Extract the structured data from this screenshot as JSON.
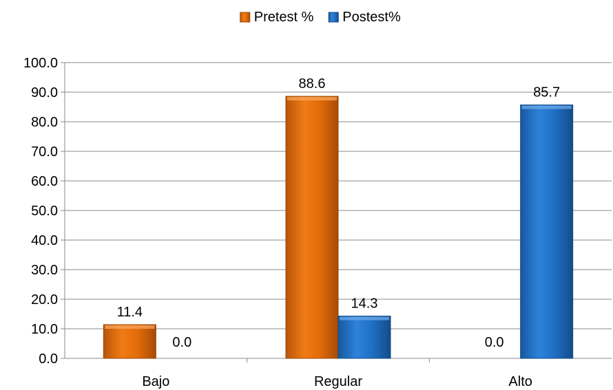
{
  "chart_data": {
    "type": "bar",
    "categories": [
      "Bajo",
      "Regular",
      "Alto"
    ],
    "series": [
      {
        "name": "Pretest %",
        "values": [
          11.4,
          88.6,
          0.0
        ],
        "labels": [
          "11.4",
          "88.6",
          "0.0"
        ],
        "color": "#E36C0A"
      },
      {
        "name": "Postest%",
        "values": [
          0.0,
          14.3,
          85.7
        ],
        "labels": [
          "0.0",
          "14.3",
          "85.7"
        ],
        "color": "#1F6FC5"
      }
    ],
    "ylim": [
      0,
      100
    ],
    "yticks": [
      "0.0",
      "10.0",
      "20.0",
      "30.0",
      "40.0",
      "50.0",
      "60.0",
      "70.0",
      "80.0",
      "90.0",
      "100.0"
    ],
    "grid": true,
    "legend": "top-center"
  }
}
